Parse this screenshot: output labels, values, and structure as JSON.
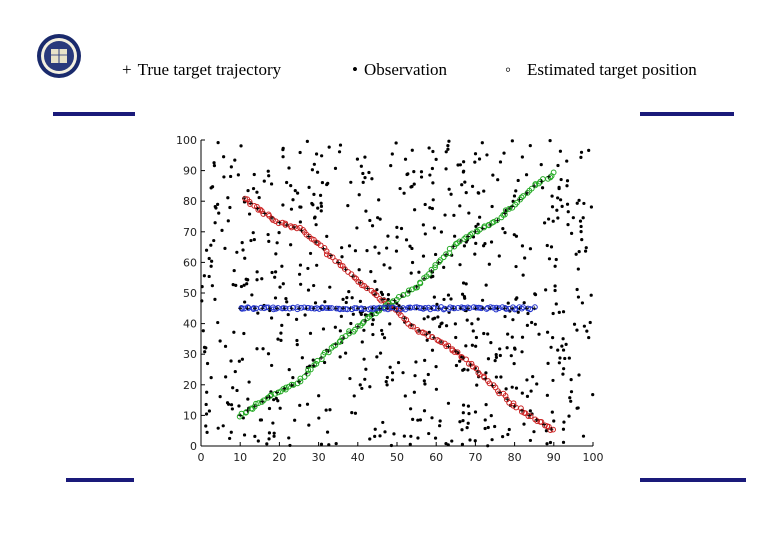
{
  "legend": [
    {
      "symbol": "+",
      "label": "True target trajectory"
    },
    {
      "symbol": "•",
      "label": "Observation"
    },
    {
      "symbol": "◦",
      "label": "Estimated target position"
    }
  ],
  "colors": {
    "accent_bar": "#1a1a7a",
    "observation": "#000000",
    "series_red": "#cc2222",
    "series_green": "#22aa22",
    "series_blue": "#2233cc"
  },
  "icons": {
    "seal": "university-seal-icon"
  },
  "chart_data": {
    "type": "scatter",
    "xlim": [
      0,
      100
    ],
    "ylim": [
      0,
      100
    ],
    "xticks": [
      "0",
      "10",
      "20",
      "30",
      "40",
      "50",
      "60",
      "70",
      "80",
      "90",
      "100"
    ],
    "yticks": [
      "0",
      "10",
      "20",
      "30",
      "40",
      "50",
      "60",
      "70",
      "80",
      "90",
      "100"
    ],
    "grid": false,
    "legend_position": "top",
    "xlabel": "",
    "ylabel": "",
    "title": "",
    "series": [
      {
        "color": "#cc2222",
        "x": [
          11,
          15,
          20,
          25,
          30,
          35,
          40,
          45,
          48,
          50,
          55,
          60,
          65,
          70,
          75,
          80,
          85,
          90
        ],
        "y": [
          81,
          77,
          73,
          71,
          66,
          60,
          54,
          49,
          46,
          44,
          38,
          35,
          31,
          25,
          19,
          13,
          9,
          5
        ]
      },
      {
        "color": "#22aa22",
        "x": [
          10,
          15,
          20,
          25,
          30,
          35,
          40,
          45,
          50,
          55,
          60,
          65,
          70,
          75,
          80,
          85,
          90
        ],
        "y": [
          10,
          14,
          18,
          21,
          28,
          34,
          39,
          44,
          48,
          52,
          59,
          66,
          70,
          73,
          79,
          85,
          89
        ]
      },
      {
        "color": "#2233cc",
        "x": [
          10,
          15,
          20,
          25,
          30,
          35,
          40,
          45,
          50,
          55,
          60,
          65,
          70,
          75,
          80,
          85
        ],
        "y": [
          45,
          45,
          45,
          45,
          45,
          45,
          45,
          45,
          45,
          45,
          45,
          45,
          45,
          45,
          45,
          45
        ]
      }
    ],
    "observations": {
      "count": 700,
      "x_range": [
        0,
        100
      ],
      "y_range": [
        0,
        100
      ],
      "distribution": "uniform"
    }
  }
}
